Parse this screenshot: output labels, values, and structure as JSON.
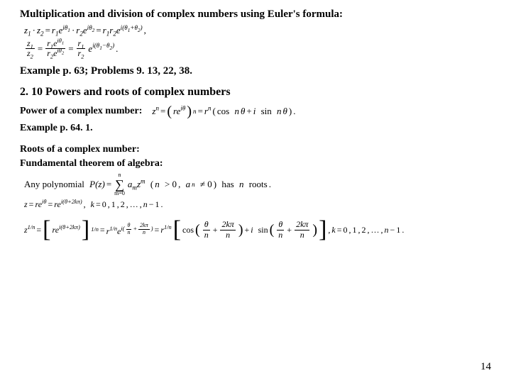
{
  "title": "Multiplication and division of complex numbers using Euler's formula:",
  "ref1": "Example  p. 63; Problems 9. 13, 22, 38.",
  "section": "2. 10 Powers and roots of complex numbers",
  "power_label": "Power of a complex number:",
  "ref2": "Example  p. 64. 1.",
  "roots_label": "Roots of a complex number:",
  "fta_label": "Fundamental theorem of algebra:",
  "page_num": "14",
  "sym": {
    "z": "z",
    "r": "r",
    "e": "e",
    "i": "i",
    "theta": "θ",
    "pi": "π",
    "dot": "·",
    "eq": "=",
    "plus": "+",
    "minus": "−",
    "comma": ",",
    "period": ".",
    "ellipsis": "…",
    "n": "n",
    "k": "k",
    "m": "m",
    "a": "a",
    "P": "P",
    "cos": "cos",
    "sin": "sin",
    "any_poly": "Any polynomial",
    "has_roots_pre": "has",
    "has_roots_post": "roots",
    "gt0": "> 0",
    "neq0": "≠ 0",
    "one": "1",
    "two": "2",
    "zero": "0"
  }
}
